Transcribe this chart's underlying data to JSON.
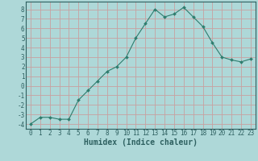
{
  "xlabel": "Humidex (Indice chaleur)",
  "x_values": [
    0,
    1,
    2,
    3,
    4,
    5,
    6,
    7,
    8,
    9,
    10,
    11,
    12,
    13,
    14,
    15,
    16,
    17,
    18,
    19,
    20,
    21,
    22,
    23
  ],
  "y_values": [
    -4.0,
    -3.3,
    -3.3,
    -3.5,
    -3.5,
    -1.5,
    -0.5,
    0.5,
    1.5,
    2.0,
    3.0,
    5.0,
    6.5,
    8.0,
    7.2,
    7.5,
    8.2,
    7.2,
    6.2,
    4.5,
    3.0,
    2.7,
    2.5,
    2.8
  ],
  "line_color": "#2e7d6e",
  "marker": "D",
  "marker_size": 2.0,
  "background_color": "#aed8d8",
  "grid_color": "#c8a0a0",
  "ylim": [
    -4.5,
    8.8
  ],
  "xlim": [
    -0.5,
    23.5
  ],
  "yticks": [
    -4,
    -3,
    -2,
    -1,
    0,
    1,
    2,
    3,
    4,
    5,
    6,
    7,
    8
  ],
  "xticks": [
    0,
    1,
    2,
    3,
    4,
    5,
    6,
    7,
    8,
    9,
    10,
    11,
    12,
    13,
    14,
    15,
    16,
    17,
    18,
    19,
    20,
    21,
    22,
    23
  ],
  "tick_fontsize": 5.5,
  "xlabel_fontsize": 7,
  "label_color": "#2e6060"
}
